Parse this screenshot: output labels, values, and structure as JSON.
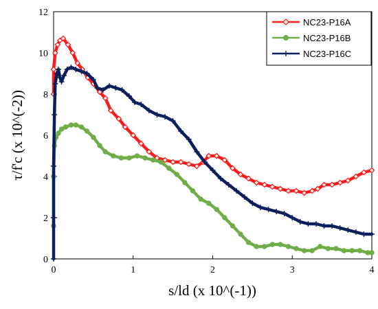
{
  "chart_data": {
    "type": "scatter",
    "title": "",
    "xlabel": "s/ld (x 10^(-1))",
    "ylabel": "τ/f'c (x 10^(-2))",
    "xlim": [
      0,
      4
    ],
    "ylim": [
      0,
      12
    ],
    "x_ticks": [
      "0",
      "1",
      "2",
      "3",
      "4"
    ],
    "y_ticks": [
      "0",
      "2",
      "4",
      "6",
      "8",
      "10",
      "12"
    ],
    "grid": false,
    "legend_position": "top-right",
    "series": [
      {
        "name": "NC23-P16A",
        "color": "#ff1a1a",
        "marker": "diamond-open",
        "x": [
          0.0,
          0.0,
          0.02,
          0.05,
          0.08,
          0.12,
          0.18,
          0.24,
          0.3,
          0.36,
          0.43,
          0.5,
          0.58,
          0.65,
          0.72,
          0.82,
          0.9,
          1.0,
          1.1,
          1.2,
          1.3,
          1.4,
          1.5,
          1.6,
          1.7,
          1.8,
          1.88,
          1.95,
          2.05,
          2.15,
          2.25,
          2.35,
          2.45,
          2.55,
          2.65,
          2.75,
          2.85,
          2.95,
          3.05,
          3.15,
          3.25,
          3.32,
          3.4,
          3.5,
          3.6,
          3.7,
          3.8,
          3.9,
          4.0
        ],
        "y": [
          8.0,
          9.2,
          10.0,
          10.4,
          10.6,
          10.7,
          10.4,
          10.0,
          9.5,
          9.2,
          8.8,
          8.5,
          8.1,
          7.8,
          7.2,
          6.8,
          6.4,
          6.0,
          5.6,
          5.2,
          4.9,
          4.8,
          4.7,
          4.7,
          4.6,
          4.5,
          4.7,
          5.0,
          5.0,
          4.8,
          4.4,
          4.1,
          3.9,
          3.7,
          3.6,
          3.5,
          3.4,
          3.3,
          3.3,
          3.2,
          3.3,
          3.4,
          3.6,
          3.6,
          3.7,
          3.8,
          4.0,
          4.2,
          4.3
        ]
      },
      {
        "name": "NC23-P16B",
        "color": "#70ad47",
        "marker": "circle",
        "x": [
          0.0,
          0.0,
          0.01,
          0.03,
          0.06,
          0.1,
          0.15,
          0.22,
          0.28,
          0.35,
          0.42,
          0.5,
          0.58,
          0.65,
          0.75,
          0.85,
          0.95,
          1.05,
          1.15,
          1.25,
          1.35,
          1.45,
          1.55,
          1.65,
          1.75,
          1.85,
          1.95,
          2.05,
          2.15,
          2.25,
          2.35,
          2.45,
          2.55,
          2.65,
          2.75,
          2.85,
          2.95,
          3.05,
          3.15,
          3.25,
          3.35,
          3.45,
          3.55,
          3.65,
          3.75,
          3.85,
          3.95,
          4.0
        ],
        "y": [
          1.6,
          4.0,
          5.5,
          5.9,
          6.1,
          6.3,
          6.4,
          6.5,
          6.5,
          6.4,
          6.2,
          5.9,
          5.5,
          5.2,
          5.0,
          4.9,
          4.9,
          5.0,
          4.9,
          4.8,
          4.7,
          4.4,
          4.1,
          3.7,
          3.3,
          2.9,
          2.7,
          2.4,
          2.0,
          1.6,
          1.2,
          0.8,
          0.6,
          0.6,
          0.7,
          0.7,
          0.6,
          0.5,
          0.4,
          0.4,
          0.6,
          0.5,
          0.5,
          0.4,
          0.4,
          0.4,
          0.3,
          0.3
        ]
      },
      {
        "name": "NC23-P16C",
        "color": "#0a1f5c",
        "marker": "plus",
        "x": [
          0.0,
          0.0,
          0.0,
          0.01,
          0.02,
          0.04,
          0.06,
          0.08,
          0.1,
          0.13,
          0.17,
          0.22,
          0.28,
          0.35,
          0.42,
          0.5,
          0.55,
          0.62,
          0.7,
          0.78,
          0.86,
          0.95,
          1.02,
          1.1,
          1.2,
          1.3,
          1.4,
          1.5,
          1.6,
          1.7,
          1.8,
          1.9,
          2.0,
          2.1,
          2.2,
          2.3,
          2.4,
          2.5,
          2.6,
          2.7,
          2.8,
          2.9,
          3.0,
          3.1,
          3.2,
          3.3,
          3.4,
          3.5,
          3.6,
          3.7,
          3.8,
          3.9,
          4.0
        ],
        "y": [
          0.0,
          2.0,
          4.5,
          7.0,
          8.5,
          9.0,
          9.2,
          8.8,
          8.6,
          8.9,
          9.2,
          9.3,
          9.2,
          9.1,
          9.0,
          8.7,
          8.3,
          8.2,
          8.4,
          8.3,
          8.2,
          7.9,
          7.6,
          7.5,
          7.2,
          7.0,
          6.9,
          6.7,
          6.2,
          5.8,
          5.2,
          4.7,
          4.3,
          3.9,
          3.6,
          3.3,
          3.0,
          2.7,
          2.5,
          2.4,
          2.3,
          2.2,
          2.0,
          1.8,
          1.7,
          1.7,
          1.6,
          1.6,
          1.5,
          1.4,
          1.3,
          1.2,
          1.2
        ]
      }
    ]
  }
}
